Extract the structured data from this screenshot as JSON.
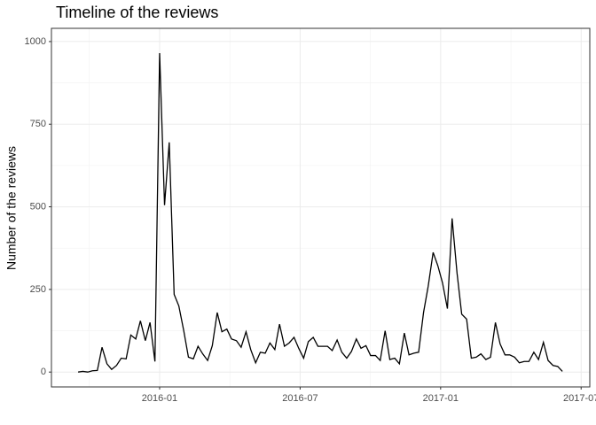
{
  "chart_data": {
    "type": "line",
    "title": "Timeline of the reviews",
    "y_label": "Number of the reviews",
    "x": [
      -3.48,
      -3.28,
      -3.07,
      -2.87,
      -2.66,
      -2.46,
      -2.25,
      -2.05,
      -1.84,
      -1.64,
      -1.43,
      -1.23,
      -1.02,
      -0.82,
      -0.61,
      -0.41,
      -0.2,
      0.0,
      0.21,
      0.41,
      0.62,
      0.82,
      1.03,
      1.23,
      1.44,
      1.64,
      1.84,
      2.05,
      2.25,
      2.46,
      2.66,
      2.87,
      3.07,
      3.28,
      3.48,
      3.69,
      3.89,
      4.1,
      4.3,
      4.51,
      4.71,
      4.92,
      5.12,
      5.33,
      5.53,
      5.74,
      5.94,
      6.15,
      6.35,
      6.56,
      6.76,
      6.97,
      7.17,
      7.37,
      7.58,
      7.78,
      7.99,
      8.19,
      8.4,
      8.6,
      8.81,
      9.01,
      9.22,
      9.42,
      9.63,
      9.83,
      10.04,
      10.24,
      10.45,
      10.65,
      10.86,
      11.06,
      11.27,
      11.47,
      11.68,
      11.88,
      12.08,
      12.29,
      12.49,
      12.7,
      12.9,
      13.11,
      13.31,
      13.52,
      13.72,
      13.93,
      14.13,
      14.34,
      14.54,
      14.75,
      14.95,
      15.16,
      15.36,
      15.57,
      15.77,
      15.98,
      16.18,
      16.39,
      16.59,
      16.8,
      17.0,
      17.2
    ],
    "series": [
      {
        "color": "#000000",
        "values": [
          0,
          2,
          0,
          4,
          5,
          75,
          25,
          8,
          20,
          42,
          40,
          112,
          100,
          155,
          95,
          150,
          32,
          965,
          505,
          695,
          235,
          200,
          125,
          45,
          40,
          78,
          55,
          35,
          80,
          180,
          122,
          130,
          100,
          95,
          75,
          122,
          68,
          28,
          60,
          57,
          88,
          68,
          145,
          78,
          88,
          105,
          72,
          42,
          92,
          105,
          78,
          78,
          78,
          65,
          97,
          60,
          42,
          62,
          100,
          72,
          80,
          50,
          50,
          35,
          125,
          38,
          42,
          25,
          118,
          52,
          57,
          60,
          180,
          260,
          362,
          322,
          270,
          192,
          465,
          300,
          175,
          160,
          42,
          45,
          55,
          38,
          45,
          150,
          85,
          52,
          52,
          45,
          28,
          32,
          32,
          60,
          38,
          90,
          35,
          20,
          17,
          2
        ]
      }
    ],
    "xlim": [
      -4.62,
      18.37
    ],
    "xticks": [
      {
        "value": 0,
        "label": "2016-01"
      },
      {
        "value": 6,
        "label": "2016-07"
      },
      {
        "value": 12,
        "label": "2017-01"
      },
      {
        "value": 18,
        "label": "2017-07"
      }
    ],
    "ylim": [
      -45,
      1040
    ],
    "yticks": [
      0,
      250,
      500,
      750,
      1000
    ],
    "grid": true
  }
}
